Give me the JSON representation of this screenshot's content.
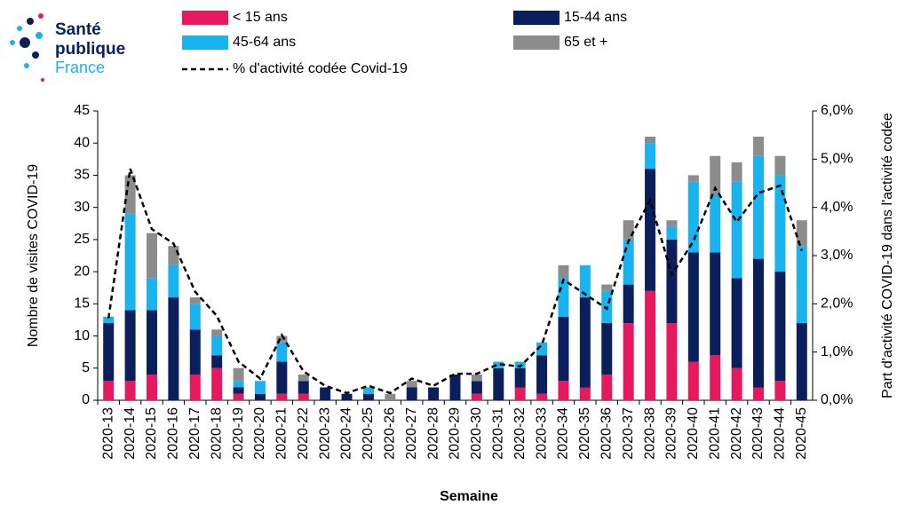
{
  "logo": {
    "line1": "Santé",
    "line2": "publique",
    "line3": "France"
  },
  "chart_data": {
    "type": "bar",
    "stacked": true,
    "x_label": "Semaine",
    "y_label": "Nombre de visites COVID-19",
    "y2_label": "Part d'activité COVID-19 dans l'activité codée",
    "categories": [
      "2020-13",
      "2020-14",
      "2020-15",
      "2020-16",
      "2020-17",
      "2020-18",
      "2020-19",
      "2020-20",
      "2020-21",
      "2020-22",
      "2020-23",
      "2020-24",
      "2020-25",
      "2020-26",
      "2020-27",
      "2020-28",
      "2020-29",
      "2020-30",
      "2020-31",
      "2020-32",
      "2020-33",
      "2020-34",
      "2020-35",
      "2020-36",
      "2020-37",
      "2020-38",
      "2020-39",
      "2020-40",
      "2020-41",
      "2020-42",
      "2020-43",
      "2020-44",
      "2020-45"
    ],
    "series": [
      {
        "name": "< 15 ans",
        "color": "#e6195f",
        "values": [
          3,
          3,
          4,
          0,
          4,
          5,
          1,
          0,
          1,
          1,
          0,
          0,
          0,
          0,
          0,
          0,
          0,
          1,
          0,
          2,
          1,
          3,
          2,
          4,
          12,
          17,
          12,
          6,
          7,
          5,
          2,
          3,
          0
        ]
      },
      {
        "name": "15-44 ans",
        "color": "#0b1f5c",
        "values": [
          9,
          11,
          10,
          16,
          7,
          2,
          1,
          1,
          5,
          2,
          2,
          1,
          1,
          0,
          2,
          2,
          4,
          2,
          5,
          3,
          6,
          10,
          14,
          8,
          6,
          19,
          13,
          17,
          16,
          14,
          20,
          17,
          12
        ]
      },
      {
        "name": "45-64 ans",
        "color": "#19b4ef",
        "values": [
          1,
          15,
          5,
          5,
          4,
          3,
          1,
          2,
          3,
          0,
          0,
          0,
          1,
          0,
          0,
          0,
          0,
          0,
          1,
          1,
          2,
          6,
          5,
          5,
          7,
          4,
          2,
          11,
          9,
          15,
          16,
          15,
          12
        ]
      },
      {
        "name": "65 et +",
        "color": "#8c8c8c",
        "values": [
          0,
          6,
          7,
          3,
          1,
          1,
          2,
          0,
          1,
          1,
          0,
          0,
          0,
          1,
          1,
          0,
          0,
          1,
          0,
          0,
          0,
          2,
          0,
          1,
          3,
          1,
          1,
          1,
          6,
          3,
          3,
          3,
          4
        ]
      },
      {
        "name": "% d'activité codée Covid-19",
        "type": "line",
        "axis": "y2",
        "color": "#000000",
        "dashed": true,
        "values": [
          1.7,
          4.8,
          3.55,
          3.25,
          2.25,
          1.75,
          0.8,
          0.45,
          1.35,
          0.6,
          0.3,
          0.15,
          0.3,
          0.15,
          0.45,
          0.3,
          0.55,
          0.55,
          0.75,
          0.7,
          1.15,
          2.5,
          2.2,
          1.9,
          3.3,
          4.15,
          2.6,
          3.3,
          4.4,
          3.7,
          4.3,
          4.45,
          3.1
        ]
      }
    ],
    "ylim": [
      0,
      45
    ],
    "yticks": [
      0,
      5,
      10,
      15,
      20,
      25,
      30,
      35,
      40,
      45
    ],
    "y2lim": [
      0,
      6
    ],
    "y2ticks": [
      {
        "value": 0,
        "label": "0,0%"
      },
      {
        "value": 1,
        "label": "1,0%"
      },
      {
        "value": 2,
        "label": "2,0%"
      },
      {
        "value": 3,
        "label": "3,0%"
      },
      {
        "value": 4,
        "label": "4,0%"
      },
      {
        "value": 5,
        "label": "5,0%"
      },
      {
        "value": 6,
        "label": "6,0%"
      }
    ],
    "grid": false,
    "legend": "top"
  }
}
